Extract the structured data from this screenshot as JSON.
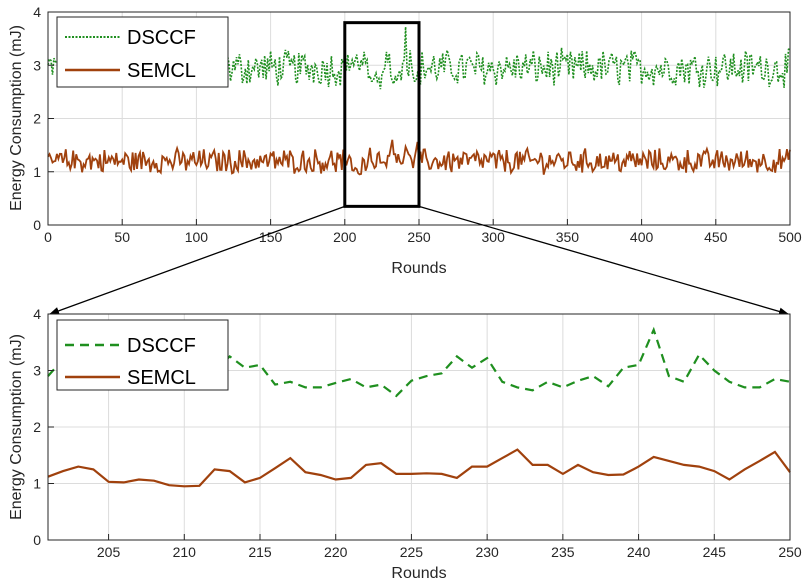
{
  "chart_data": [
    {
      "type": "line",
      "title": "",
      "xlabel": "Rounds",
      "ylabel": "Energy Consumption (mJ)",
      "xlim": [
        0,
        500
      ],
      "ylim": [
        0,
        4
      ],
      "xticks": [
        "0",
        "50",
        "100",
        "150",
        "200",
        "250",
        "300",
        "350",
        "400",
        "450",
        "500"
      ],
      "yticks": [
        "0",
        "1",
        "2",
        "3",
        "4"
      ],
      "grid": true,
      "legend_position": "top-left",
      "zoom_box": {
        "x": [
          200,
          250
        ],
        "y": [
          0.35,
          3.8
        ]
      },
      "series": [
        {
          "name": "DSCCF",
          "color": "#1f8f1f",
          "style": "dotted",
          "mean": 2.95,
          "spread": 0.3
        },
        {
          "name": "SEMCL",
          "color": "#a0410d",
          "style": "solid",
          "mean": 1.2,
          "spread": 0.2
        }
      ]
    },
    {
      "type": "line",
      "title": "",
      "xlabel": "Rounds",
      "ylabel": "Energy Consumption (mJ)",
      "xlim": [
        201,
        250
      ],
      "ylim": [
        0,
        4
      ],
      "xticks": [
        "205",
        "210",
        "215",
        "220",
        "225",
        "230",
        "235",
        "240",
        "245",
        "250"
      ],
      "yticks": [
        "0",
        "1",
        "2",
        "3",
        "4"
      ],
      "grid": true,
      "legend_position": "top-left",
      "x": [
        201,
        202,
        203,
        204,
        205,
        206,
        207,
        208,
        209,
        210,
        211,
        212,
        213,
        214,
        215,
        216,
        217,
        218,
        219,
        220,
        221,
        222,
        223,
        224,
        225,
        226,
        227,
        228,
        229,
        230,
        231,
        232,
        233,
        234,
        235,
        236,
        237,
        238,
        239,
        240,
        241,
        242,
        243,
        244,
        245,
        246,
        247,
        248,
        249,
        250
      ],
      "series": [
        {
          "name": "DSCCF",
          "color": "#1f8f1f",
          "style": "dashed",
          "values": [
            2.9,
            3.2,
            2.9,
            3.0,
            3.1,
            3.0,
            3.1,
            3.2,
            3.0,
            2.9,
            3.1,
            3.0,
            3.25,
            3.05,
            3.1,
            2.75,
            2.8,
            2.7,
            2.7,
            2.78,
            2.85,
            2.7,
            2.75,
            2.55,
            2.82,
            2.9,
            2.95,
            3.25,
            3.05,
            3.22,
            2.8,
            2.7,
            2.65,
            2.8,
            2.7,
            2.82,
            2.9,
            2.72,
            3.05,
            3.1,
            3.72,
            2.9,
            2.8,
            3.28,
            3.0,
            2.8,
            2.7,
            2.7,
            2.85,
            2.8
          ]
        },
        {
          "name": "SEMCL",
          "color": "#a0410d",
          "style": "solid",
          "values": [
            1.12,
            1.22,
            1.3,
            1.25,
            1.03,
            1.02,
            1.07,
            1.05,
            0.97,
            0.95,
            0.96,
            1.25,
            1.22,
            1.02,
            1.1,
            1.27,
            1.45,
            1.2,
            1.15,
            1.07,
            1.1,
            1.33,
            1.36,
            1.17,
            1.17,
            1.18,
            1.17,
            1.1,
            1.3,
            1.3,
            1.45,
            1.6,
            1.33,
            1.33,
            1.17,
            1.33,
            1.2,
            1.15,
            1.16,
            1.3,
            1.47,
            1.4,
            1.33,
            1.3,
            1.22,
            1.07,
            1.25,
            1.4,
            1.56,
            1.2
          ]
        }
      ]
    }
  ]
}
